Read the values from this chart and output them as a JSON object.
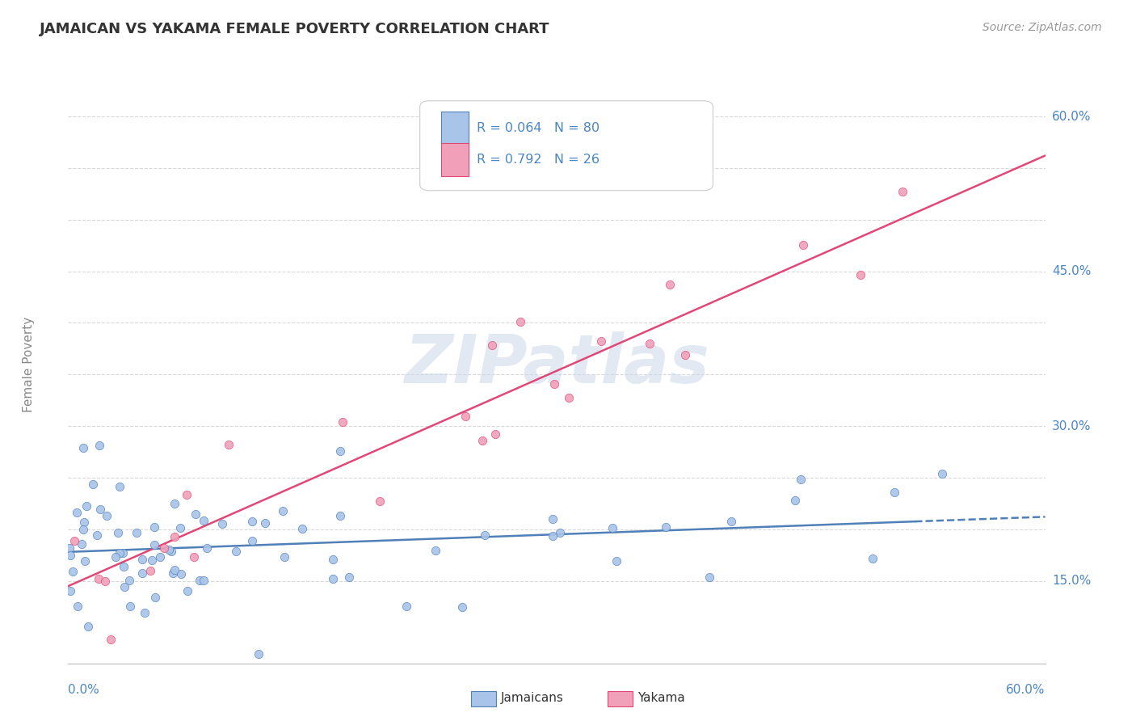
{
  "title": "JAMAICAN VS YAKAMA FEMALE POVERTY CORRELATION CHART",
  "source": "Source: ZipAtlas.com",
  "ylabel": "Female Poverty",
  "xlim": [
    0.0,
    0.6
  ],
  "ylim": [
    0.07,
    0.65
  ],
  "jamaican_color": "#a8c4e8",
  "yakama_color": "#f0a0b8",
  "jamaican_line_color": "#5080b8",
  "yakama_line_color": "#e04878",
  "legend_R_jamaican": "R = 0.064",
  "legend_N_jamaican": "N = 80",
  "legend_R_yakama": "R = 0.792",
  "legend_N_yakama": "N = 26",
  "watermark_text": "ZIPatlas",
  "background_color": "#ffffff",
  "grid_color": "#d8d8d8",
  "title_color": "#333333",
  "axis_label_color": "#4a86c8",
  "source_color": "#999999",
  "ytick_vals": [
    0.15,
    0.2,
    0.25,
    0.3,
    0.35,
    0.4,
    0.45,
    0.5,
    0.55,
    0.6
  ],
  "ytick_show": [
    0.15,
    0.3,
    0.45,
    0.6
  ],
  "ytick_labels": [
    "15.0%",
    "30.0%",
    "45.0%",
    "60.0%"
  ]
}
